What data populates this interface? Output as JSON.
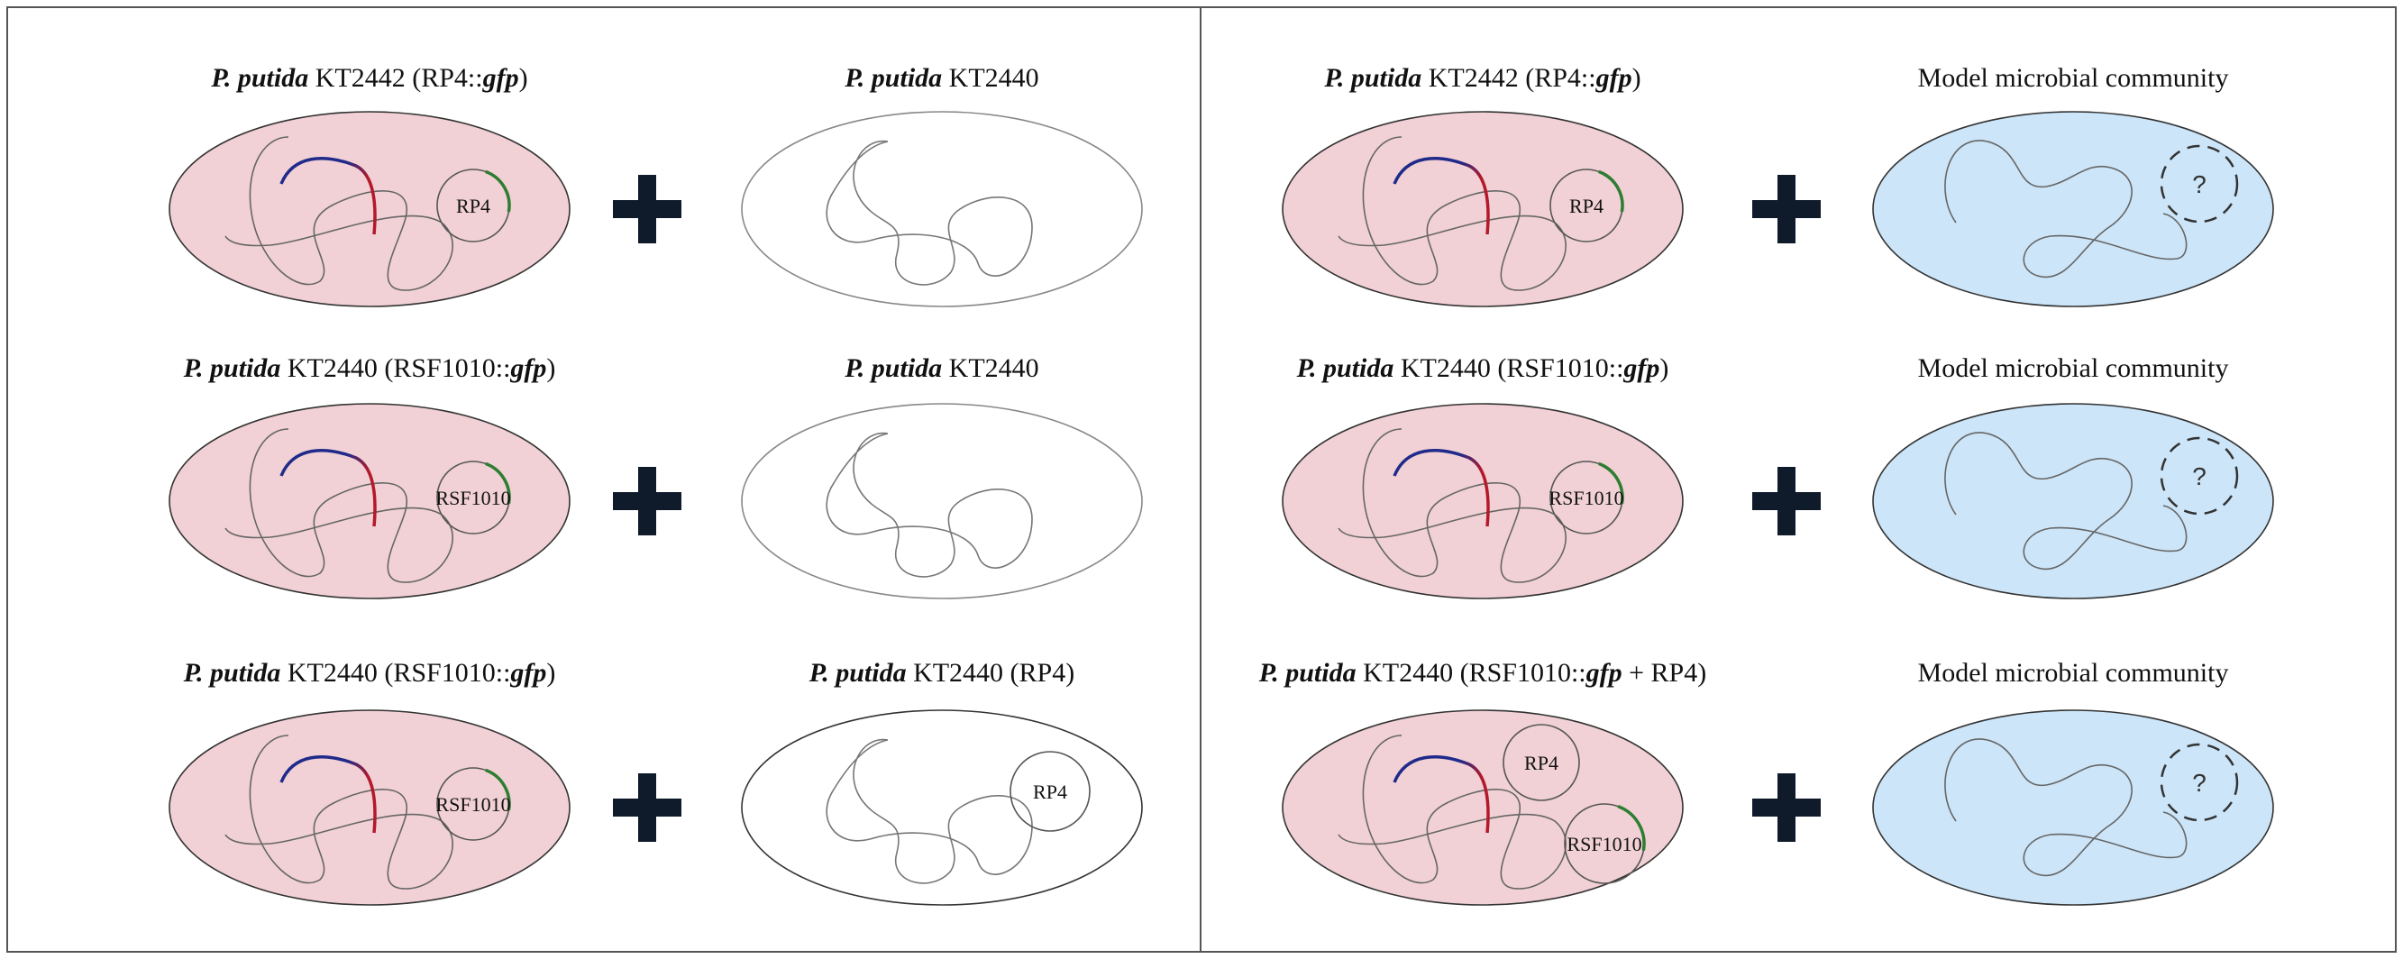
{
  "colors": {
    "donor_fill": "#f1d1d5",
    "community_fill": "#cce5f8",
    "recipient_fill": "#ffffff",
    "plus": "#0f1b2a",
    "gfp_arc": "#2e7d32",
    "chrom_blue": "#1f2a8a",
    "chrom_red": "#b3192a",
    "panel_border": "#555555"
  },
  "panels": [
    {
      "rows": [
        {
          "donor": {
            "label": {
              "italic": "P. putida",
              "strain": "KT2442",
              "plasmid_open": " (RP4::",
              "gfp": "gfp",
              "plasmid_close": ")"
            },
            "plasmids": [
              "RP4"
            ]
          },
          "recipient": {
            "label": {
              "italic": "P. putida",
              "strain": "KT2440"
            },
            "kind": "plain"
          }
        },
        {
          "donor": {
            "label": {
              "italic": "P. putida",
              "strain": "KT2440",
              "plasmid_open": " (RSF1010::",
              "gfp": "gfp",
              "plasmid_close": ")"
            },
            "plasmids": [
              "RSF1010"
            ]
          },
          "recipient": {
            "label": {
              "italic": "P. putida",
              "strain": "KT2440"
            },
            "kind": "plain"
          }
        },
        {
          "donor": {
            "label": {
              "italic": "P. putida",
              "strain": "KT2440",
              "plasmid_open": " (RSF1010::",
              "gfp": "gfp",
              "plasmid_close": ")"
            },
            "plasmids": [
              "RSF1010"
            ]
          },
          "recipient": {
            "label": {
              "italic": "P. putida",
              "strain": "KT2440 (RP4)"
            },
            "kind": "plasmid",
            "plasmid": "RP4"
          }
        }
      ]
    },
    {
      "rows": [
        {
          "donor": {
            "label": {
              "italic": "P. putida",
              "strain": "KT2442",
              "plasmid_open": " (RP4::",
              "gfp": "gfp",
              "plasmid_close": ")"
            },
            "plasmids": [
              "RP4"
            ]
          },
          "recipient": {
            "label": {
              "plain": "Model microbial community"
            },
            "kind": "community",
            "unknown": "?"
          }
        },
        {
          "donor": {
            "label": {
              "italic": "P. putida",
              "strain": "KT2440",
              "plasmid_open": " (RSF1010::",
              "gfp": "gfp",
              "plasmid_close": ")"
            },
            "plasmids": [
              "RSF1010"
            ]
          },
          "recipient": {
            "label": {
              "plain": "Model microbial community"
            },
            "kind": "community",
            "unknown": "?"
          }
        },
        {
          "donor": {
            "label": {
              "italic": "P. putida",
              "strain": "KT2440",
              "plasmid_open": " (RSF1010::",
              "gfp": "gfp",
              "plasmid_close": " + RP4)"
            },
            "plasmids": [
              "RP4",
              "RSF1010"
            ]
          },
          "recipient": {
            "label": {
              "plain": "Model microbial community"
            },
            "kind": "community",
            "unknown": "?"
          }
        }
      ]
    }
  ]
}
